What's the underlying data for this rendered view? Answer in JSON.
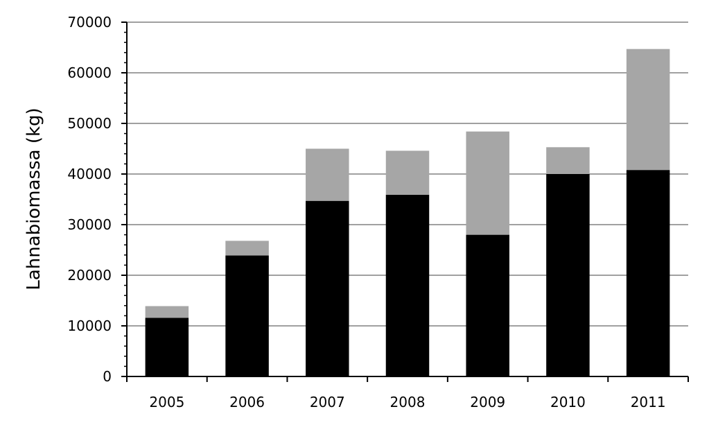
{
  "chart_data": {
    "type": "bar",
    "stacked": true,
    "categories": [
      "2005",
      "2006",
      "2007",
      "2008",
      "2009",
      "2010",
      "2011"
    ],
    "series": [
      {
        "values": [
          11600,
          23900,
          34700,
          35900,
          28000,
          40000,
          40800
        ]
      },
      {
        "values": [
          2300,
          2900,
          10300,
          8700,
          20400,
          5300,
          23900
        ]
      }
    ],
    "title": "",
    "xlabel": "",
    "ylabel": "Lahnabiomassa (kg)",
    "ylim": [
      0,
      70000
    ],
    "yticks": [
      "0",
      "10000",
      "20000",
      "30000",
      "40000",
      "50000",
      "60000",
      "70000"
    ],
    "grid": true,
    "legend": "none",
    "colors": {
      "series": [
        "#000000",
        "#a6a6a6"
      ],
      "grid": "#808080",
      "axis": "#000000"
    }
  }
}
